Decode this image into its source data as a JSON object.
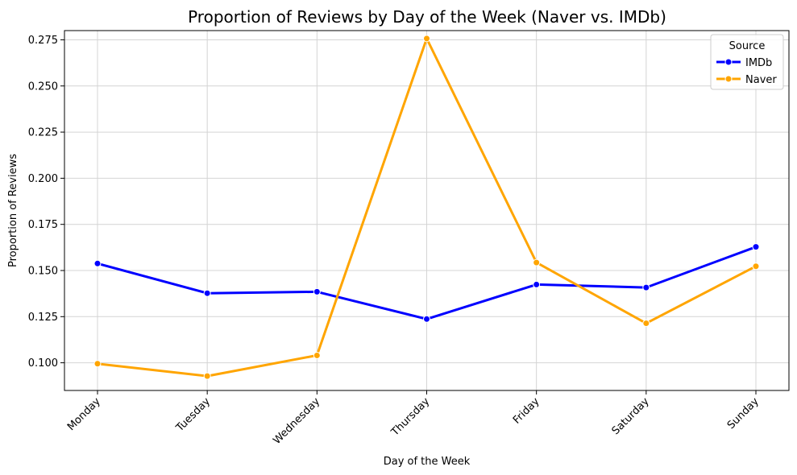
{
  "chart_data": {
    "type": "line",
    "title": "Proportion of Reviews by Day of the Week (Naver vs. IMDb)",
    "xlabel": "Day of the Week",
    "ylabel": "Proportion of Reviews",
    "categories": [
      "Monday",
      "Tuesday",
      "Wednesday",
      "Thursday",
      "Friday",
      "Saturday",
      "Sunday"
    ],
    "ylim": [
      0.085,
      0.28
    ],
    "yticks": [
      0.1,
      0.125,
      0.15,
      0.175,
      0.2,
      0.225,
      0.25,
      0.275
    ],
    "ytick_labels": [
      "0.100",
      "0.125",
      "0.150",
      "0.175",
      "0.200",
      "0.225",
      "0.250",
      "0.275"
    ],
    "grid": true,
    "legend": {
      "title": "Source",
      "placement": "top-right"
    },
    "series": [
      {
        "name": "IMDb",
        "color": "#0000ff",
        "values": [
          0.1538,
          0.1377,
          0.1385,
          0.1237,
          0.1424,
          0.1408,
          0.1628
        ]
      },
      {
        "name": "Naver",
        "color": "#ffa500",
        "values": [
          0.0995,
          0.0928,
          0.104,
          0.2757,
          0.1543,
          0.1214,
          0.1523
        ]
      }
    ]
  }
}
